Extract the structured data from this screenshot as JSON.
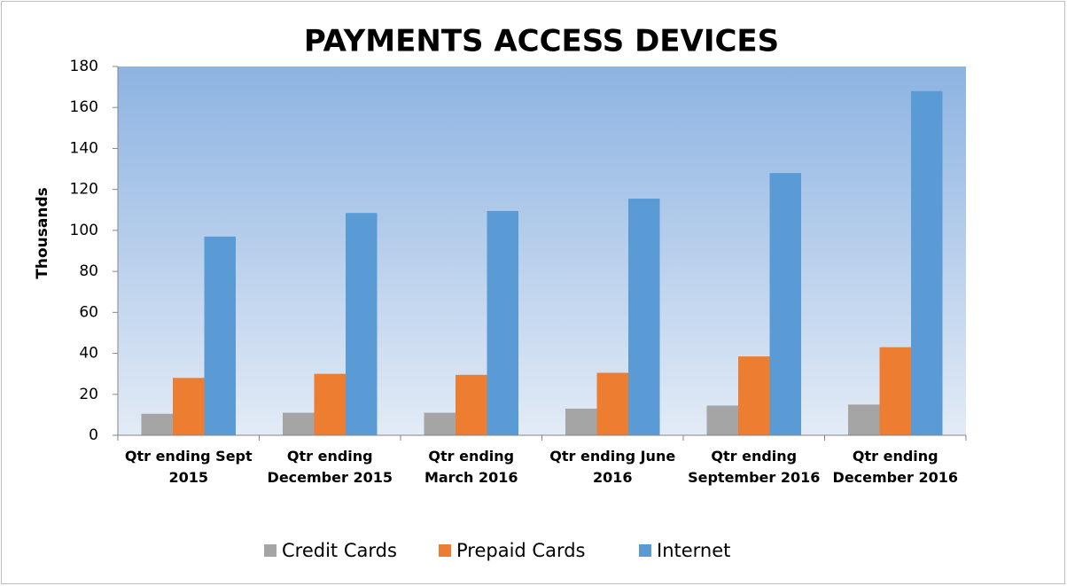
{
  "chart_data": {
    "type": "bar",
    "title": "PAYMENTS ACCESS DEVICES",
    "y_label": "Thousands",
    "categories": [
      "Qtr ending Sept 2015",
      "Qtr ending December 2015",
      "Qtr ending March 2016",
      "Qtr ending June 2016",
      "Qtr ending September 2016",
      "Qtr ending December 2016"
    ],
    "series": [
      {
        "name": "Credit Cards",
        "color": "#a5a5a5",
        "values": [
          10.5,
          11,
          11,
          13,
          14.5,
          15
        ]
      },
      {
        "name": "Prepaid Cards",
        "color": "#ed7d31",
        "values": [
          28,
          30,
          29.5,
          30.5,
          38.5,
          43
        ]
      },
      {
        "name": "Internet",
        "color": "#5b9bd5",
        "values": [
          97,
          108.5,
          109.5,
          115.5,
          128,
          168
        ]
      }
    ],
    "ylim": [
      0,
      180
    ],
    "yticks": [
      0,
      20,
      40,
      60,
      80,
      100,
      120,
      140,
      160,
      180
    ],
    "legend": "bottom"
  }
}
